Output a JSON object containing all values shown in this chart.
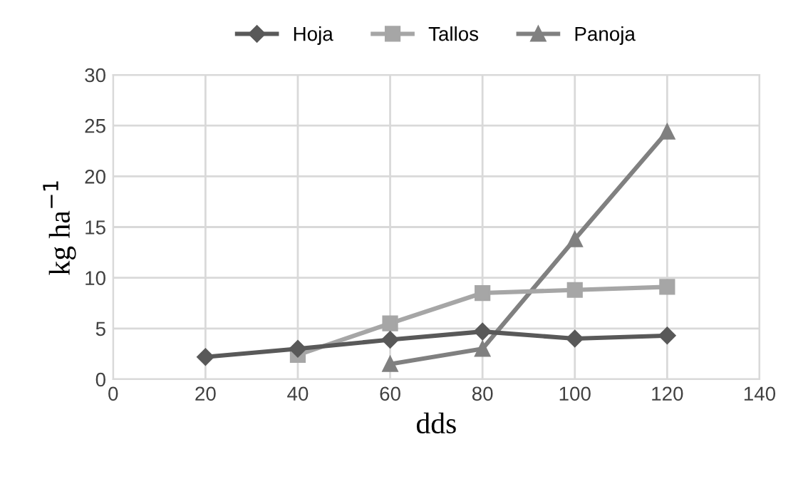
{
  "chart_data": {
    "type": "line",
    "xlabel": "dds",
    "ylabel": "kg ha$^{−1}$",
    "xlim": [
      0,
      140
    ],
    "xticks": [
      0,
      20,
      40,
      60,
      80,
      100,
      120,
      140
    ],
    "ylim": [
      0,
      30
    ],
    "yticks": [
      0,
      5,
      10,
      15,
      20,
      25,
      30
    ],
    "grid": true,
    "legend": "top",
    "line_style": "solid",
    "series": [
      {
        "name": "Hoja",
        "color": "#595959",
        "marker": "diamond",
        "x": [
          20,
          40,
          60,
          80,
          100,
          120
        ],
        "values": [
          2.2,
          3.0,
          3.9,
          4.7,
          4.0,
          4.3
        ]
      },
      {
        "name": "Tallos",
        "color": "#a6a6a6",
        "marker": "square",
        "x": [
          40,
          60,
          80,
          100,
          120
        ],
        "values": [
          2.4,
          5.5,
          8.5,
          8.8,
          9.1
        ]
      },
      {
        "name": "Panoja",
        "color": "#808080",
        "marker": "triangle",
        "x": [
          60,
          80,
          100,
          120
        ],
        "values": [
          1.5,
          3.0,
          13.8,
          24.4
        ]
      }
    ]
  }
}
